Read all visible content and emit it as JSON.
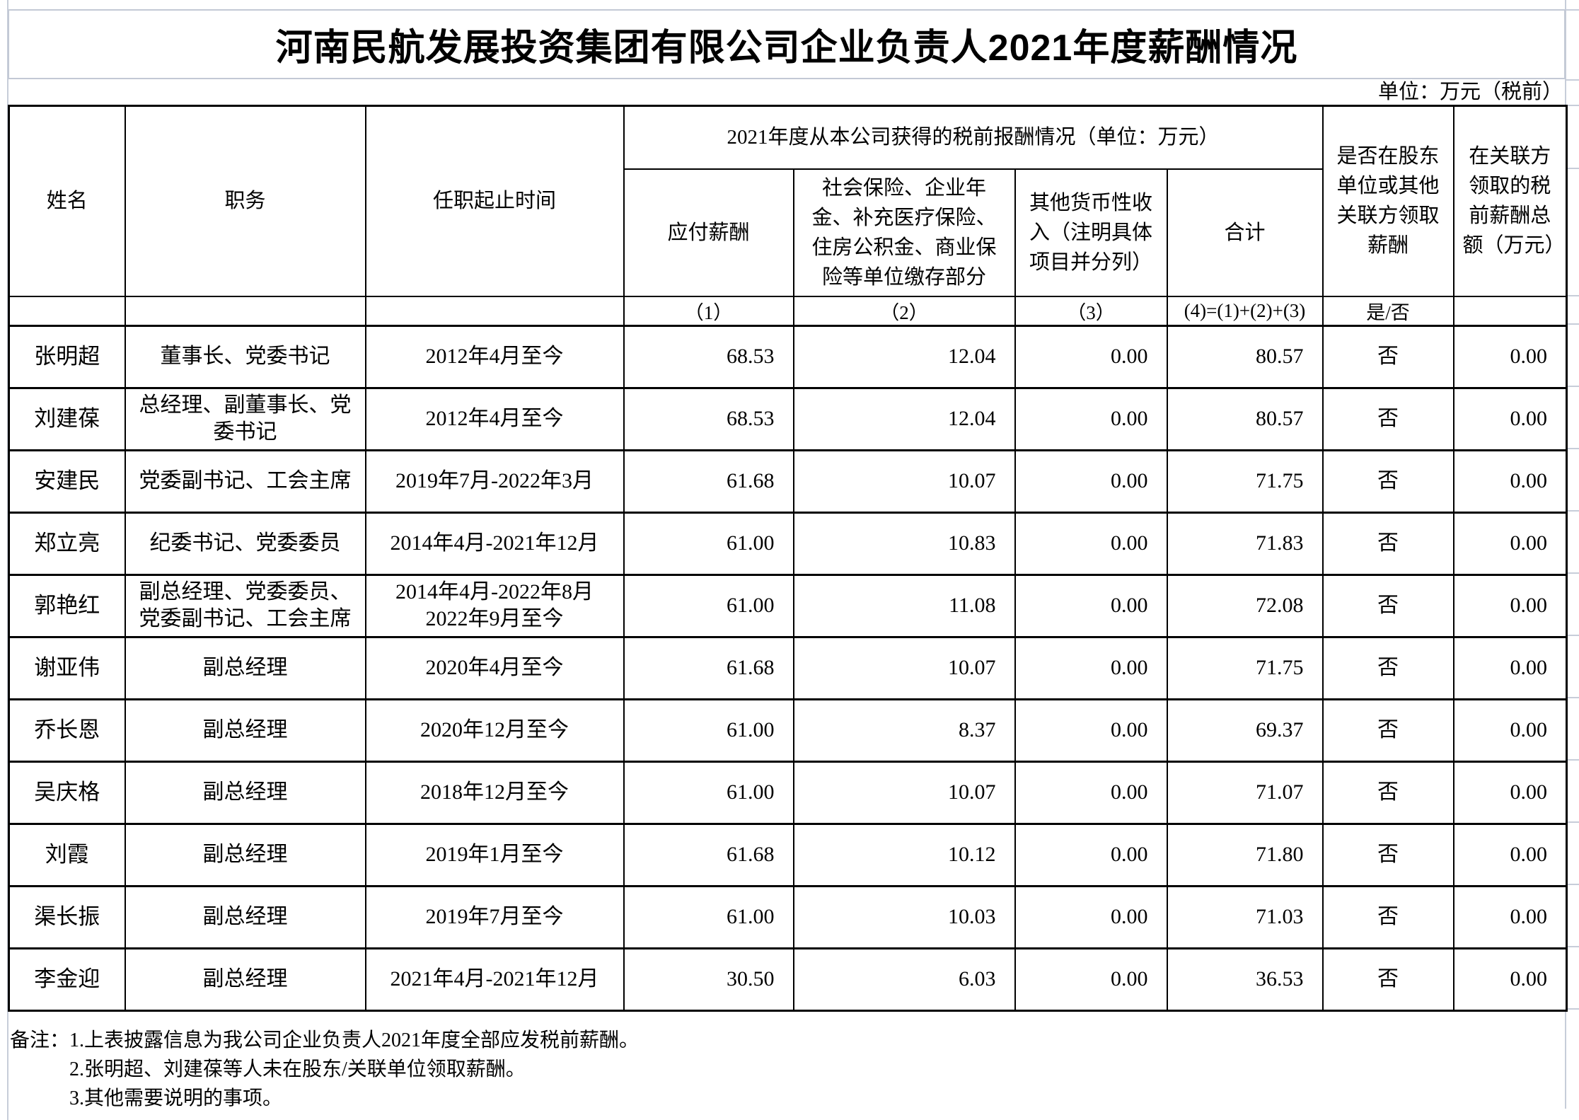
{
  "title": "河南民航发展投资集团有限公司企业负责人2021年度薪酬情况",
  "unit_note": "单位：万元（税前）",
  "table": {
    "headers": {
      "name": "姓名",
      "position": "职务",
      "term": "任职起止时间",
      "compensation_group": "2021年度从本公司获得的税前报酬情况（单位：万元）",
      "payable": "应付薪酬",
      "insurance": "社会保险、企业年金、补充医疗保险、住房公积金、商业保险等单位缴存部分",
      "other_income": "其他货币性收入（注明具体项目并分列）",
      "total": "合计",
      "related_flag": "是否在股东单位或其他关联方领取薪酬",
      "related_amount": "在关联方领取的税前薪酬总额（万元）"
    },
    "formula_row": {
      "payable": "（1）",
      "insurance": "（2）",
      "other_income": "（3）",
      "total": "(4)=(1)+(2)+(3)",
      "related_flag": "是/否"
    },
    "rows": [
      {
        "name": "张明超",
        "position": "董事长、党委书记",
        "term": "2012年4月至今",
        "payable": "68.53",
        "insurance": "12.04",
        "other_income": "0.00",
        "total": "80.57",
        "related_flag": "否",
        "related_amount": "0.00"
      },
      {
        "name": "刘建葆",
        "position": "总经理、副董事长、党委书记",
        "term": "2012年4月至今",
        "payable": "68.53",
        "insurance": "12.04",
        "other_income": "0.00",
        "total": "80.57",
        "related_flag": "否",
        "related_amount": "0.00"
      },
      {
        "name": "安建民",
        "position": "党委副书记、工会主席",
        "term": "2019年7月-2022年3月",
        "payable": "61.68",
        "insurance": "10.07",
        "other_income": "0.00",
        "total": "71.75",
        "related_flag": "否",
        "related_amount": "0.00"
      },
      {
        "name": "郑立亮",
        "position": "纪委书记、党委委员",
        "term": "2014年4月-2021年12月",
        "payable": "61.00",
        "insurance": "10.83",
        "other_income": "0.00",
        "total": "71.83",
        "related_flag": "否",
        "related_amount": "0.00"
      },
      {
        "name": "郭艳红",
        "position": "副总经理、党委委员、党委副书记、工会主席",
        "term": "2014年4月-2022年8月\n2022年9月至今",
        "payable": "61.00",
        "insurance": "11.08",
        "other_income": "0.00",
        "total": "72.08",
        "related_flag": "否",
        "related_amount": "0.00"
      },
      {
        "name": "谢亚伟",
        "position": "副总经理",
        "term": "2020年4月至今",
        "payable": "61.68",
        "insurance": "10.07",
        "other_income": "0.00",
        "total": "71.75",
        "related_flag": "否",
        "related_amount": "0.00"
      },
      {
        "name": "乔长恩",
        "position": "副总经理",
        "term": "2020年12月至今",
        "payable": "61.00",
        "insurance": "8.37",
        "other_income": "0.00",
        "total": "69.37",
        "related_flag": "否",
        "related_amount": "0.00"
      },
      {
        "name": "吴庆格",
        "position": "副总经理",
        "term": "2018年12月至今",
        "payable": "61.00",
        "insurance": "10.07",
        "other_income": "0.00",
        "total": "71.07",
        "related_flag": "否",
        "related_amount": "0.00"
      },
      {
        "name": "刘霞",
        "position": "副总经理",
        "term": "2019年1月至今",
        "payable": "61.68",
        "insurance": "10.12",
        "other_income": "0.00",
        "total": "71.80",
        "related_flag": "否",
        "related_amount": "0.00"
      },
      {
        "name": "渠长振",
        "position": "副总经理",
        "term": "2019年7月至今",
        "payable": "61.00",
        "insurance": "10.03",
        "other_income": "0.00",
        "total": "71.03",
        "related_flag": "否",
        "related_amount": "0.00"
      },
      {
        "name": "李金迎",
        "position": "副总经理",
        "term": "2021年4月-2021年12月",
        "payable": "30.50",
        "insurance": "6.03",
        "other_income": "0.00",
        "total": "36.53",
        "related_flag": "否",
        "related_amount": "0.00"
      }
    ]
  },
  "notes": {
    "label": "备注：",
    "items": [
      "1.上表披露信息为我公司企业负责人2021年度全部应发税前薪酬。",
      "2.张明超、刘建葆等人未在股东/关联单位领取薪酬。",
      "3.其他需要说明的事项。"
    ]
  }
}
